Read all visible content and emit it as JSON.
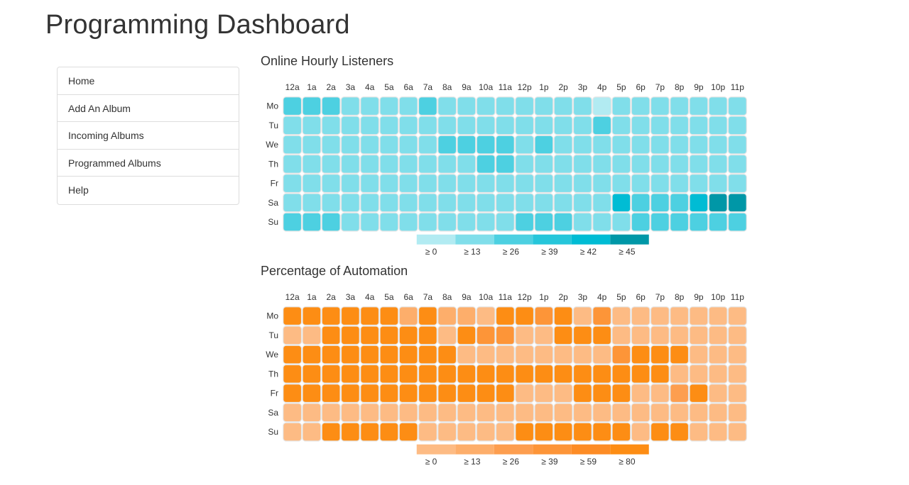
{
  "header": {
    "title": "Programming Dashboard"
  },
  "sidebar": {
    "items": [
      {
        "label": "Home"
      },
      {
        "label": "Add An Album"
      },
      {
        "label": "Incoming Albums"
      },
      {
        "label": "Programmed Albums"
      },
      {
        "label": "Help"
      }
    ]
  },
  "listeners": {
    "title": "Online Hourly Listeners"
  },
  "automation": {
    "title": "Percentage of Automation"
  },
  "chart_data": [
    {
      "type": "heatmap",
      "title": "Online Hourly Listeners",
      "hours": [
        "12a",
        "1a",
        "2a",
        "3a",
        "4a",
        "5a",
        "6a",
        "7a",
        "8a",
        "9a",
        "10a",
        "11a",
        "12p",
        "1p",
        "2p",
        "3p",
        "4p",
        "5p",
        "6p",
        "7p",
        "8p",
        "9p",
        "10p",
        "11p"
      ],
      "days": [
        "Mo",
        "Tu",
        "We",
        "Th",
        "Fr",
        "Sa",
        "Su"
      ],
      "legend": [
        "≥ 0",
        "≥ 13",
        "≥ 26",
        "≥ 39",
        "≥ 42",
        "≥ 45"
      ],
      "colors": [
        "#b2ebf2",
        "#80deea",
        "#4dd0e1",
        "#26c6da",
        "#00bcd4",
        "#0097a7"
      ],
      "levels": [
        [
          2,
          2,
          2,
          1,
          1,
          1,
          1,
          2,
          1,
          1,
          1,
          1,
          1,
          1,
          1,
          1,
          0,
          1,
          1,
          1,
          1,
          1,
          1,
          1
        ],
        [
          1,
          1,
          1,
          1,
          1,
          1,
          1,
          1,
          1,
          1,
          1,
          1,
          1,
          1,
          1,
          1,
          2,
          1,
          1,
          1,
          1,
          1,
          1,
          1
        ],
        [
          1,
          1,
          1,
          1,
          1,
          1,
          1,
          1,
          2,
          2,
          2,
          2,
          1,
          2,
          1,
          1,
          1,
          1,
          1,
          1,
          1,
          1,
          1,
          1
        ],
        [
          1,
          1,
          1,
          1,
          1,
          1,
          1,
          1,
          1,
          1,
          2,
          2,
          1,
          1,
          1,
          1,
          1,
          1,
          1,
          1,
          1,
          1,
          1,
          1
        ],
        [
          1,
          1,
          1,
          1,
          1,
          1,
          1,
          1,
          1,
          1,
          1,
          1,
          1,
          1,
          1,
          1,
          1,
          1,
          1,
          1,
          1,
          1,
          1,
          1
        ],
        [
          1,
          1,
          1,
          1,
          1,
          1,
          1,
          1,
          1,
          1,
          1,
          1,
          1,
          1,
          1,
          1,
          1,
          4,
          2,
          2,
          2,
          4,
          5,
          5
        ],
        [
          2,
          2,
          2,
          1,
          1,
          1,
          1,
          1,
          1,
          1,
          1,
          1,
          2,
          2,
          2,
          1,
          1,
          1,
          2,
          2,
          2,
          2,
          2,
          2
        ]
      ]
    },
    {
      "type": "heatmap",
      "title": "Percentage of Automation",
      "hours": [
        "12a",
        "1a",
        "2a",
        "3a",
        "4a",
        "5a",
        "6a",
        "7a",
        "8a",
        "9a",
        "10a",
        "11a",
        "12p",
        "1p",
        "2p",
        "3p",
        "4p",
        "5p",
        "6p",
        "7p",
        "8p",
        "9p",
        "10p",
        "11p"
      ],
      "days": [
        "Mo",
        "Tu",
        "We",
        "Th",
        "Fr",
        "Sa",
        "Su"
      ],
      "legend": [
        "≥ 0",
        "≥ 13",
        "≥ 26",
        "≥ 39",
        "≥ 59",
        "≥ 80"
      ],
      "colors": [
        "#fdbb84",
        "#fdae6b",
        "#fd9e4f",
        "#fd9538",
        "#fd8c25",
        "#fd8d14"
      ],
      "levels": [
        [
          5,
          5,
          5,
          5,
          5,
          5,
          1,
          5,
          1,
          1,
          0,
          5,
          5,
          3,
          5,
          0,
          3,
          0,
          0,
          0,
          0,
          0,
          0,
          0
        ],
        [
          0,
          0,
          5,
          5,
          5,
          5,
          5,
          5,
          0,
          5,
          3,
          3,
          0,
          0,
          5,
          5,
          5,
          0,
          0,
          0,
          0,
          0,
          0,
          0
        ],
        [
          5,
          5,
          5,
          5,
          5,
          5,
          5,
          5,
          5,
          0,
          0,
          0,
          0,
          0,
          0,
          0,
          0,
          3,
          5,
          5,
          5,
          0,
          0,
          0
        ],
        [
          5,
          5,
          5,
          5,
          5,
          5,
          5,
          5,
          5,
          5,
          5,
          5,
          5,
          5,
          5,
          5,
          5,
          5,
          5,
          5,
          0,
          0,
          0,
          0
        ],
        [
          5,
          5,
          5,
          5,
          5,
          5,
          5,
          5,
          5,
          5,
          5,
          5,
          0,
          0,
          0,
          5,
          5,
          5,
          0,
          0,
          2,
          5,
          0,
          0
        ],
        [
          0,
          0,
          0,
          0,
          0,
          0,
          0,
          0,
          0,
          0,
          0,
          0,
          0,
          0,
          0,
          0,
          0,
          0,
          0,
          0,
          0,
          0,
          0,
          0
        ],
        [
          0,
          0,
          5,
          5,
          5,
          5,
          5,
          0,
          0,
          0,
          0,
          0,
          5,
          5,
          5,
          5,
          5,
          5,
          0,
          5,
          5,
          0,
          0,
          0
        ]
      ]
    }
  ]
}
